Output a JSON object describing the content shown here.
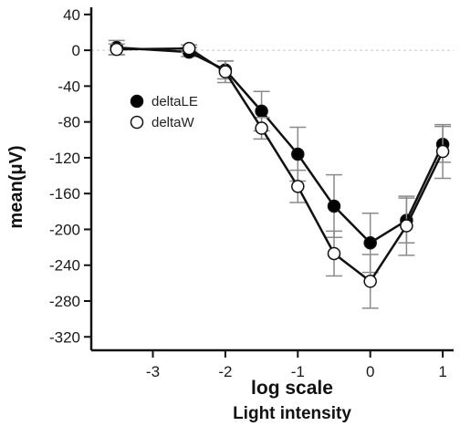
{
  "chart_data": {
    "type": "line",
    "title": "",
    "xlabel": "log scale",
    "xlabel2": "Light intensity",
    "ylabel": "mean(μV)",
    "xlim": [
      -3.85,
      1.15
    ],
    "ylim": [
      -335,
      48
    ],
    "xticks": [
      -3,
      -2,
      -1,
      0,
      1
    ],
    "yticks": [
      40,
      0,
      -40,
      -80,
      -120,
      -160,
      -200,
      -240,
      -280,
      -320
    ],
    "reference_line": 0,
    "legend_position": "upper-left",
    "series": [
      {
        "name": "deltaLE",
        "marker": "filled",
        "color": "#000000",
        "x": [
          -3.5,
          -2.5,
          -2.0,
          -1.5,
          -1.0,
          -0.5,
          0.0,
          0.5,
          1.0
        ],
        "y": [
          3,
          -2,
          -22,
          -68,
          -116,
          -174,
          -215,
          -190,
          -105
        ],
        "err": [
          8,
          5,
          10,
          22,
          30,
          35,
          33,
          25,
          20
        ]
      },
      {
        "name": "deltaW",
        "marker": "open",
        "color": "#000000",
        "x": [
          -3.5,
          -2.5,
          -2.0,
          -1.5,
          -1.0,
          -0.5,
          0.0,
          0.5,
          1.0
        ],
        "y": [
          1,
          2,
          -24,
          -87,
          -152,
          -227,
          -258,
          -196,
          -113
        ],
        "err": [
          6,
          4,
          12,
          12,
          18,
          25,
          30,
          33,
          30
        ]
      }
    ]
  }
}
